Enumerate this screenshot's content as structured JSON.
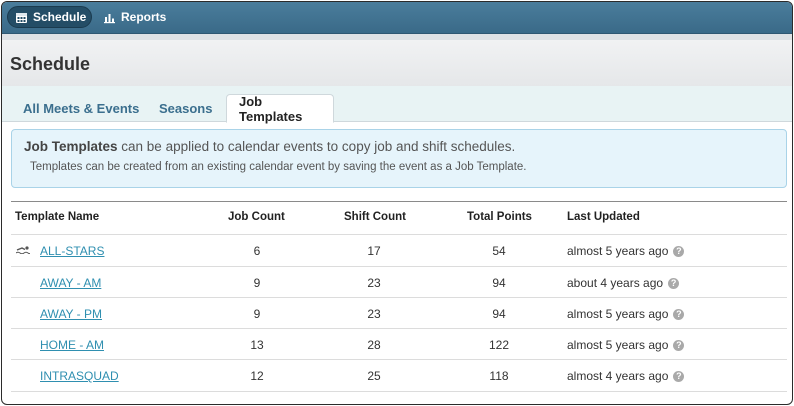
{
  "nav": {
    "schedule_label": "Schedule",
    "reports_label": "Reports",
    "icons": [
      "calendar-icon",
      "bar-chart-icon"
    ]
  },
  "page_title": "Schedule",
  "tabs": [
    {
      "label": "All Meets & Events"
    },
    {
      "label": "Seasons"
    },
    {
      "label": "Job Templates",
      "active": true
    }
  ],
  "info": {
    "strong": "Job Templates",
    "line1_rest": " can be applied to calendar events to copy job and shift schedules.",
    "line2": "Templates can be created from an existing calendar event by saving the event as a Job Template."
  },
  "table": {
    "headers": [
      "Template Name",
      "Job Count",
      "Shift Count",
      "Total Points",
      "Last Updated"
    ],
    "rows": [
      {
        "name": "ALL-STARS",
        "jobs": "6",
        "shifts": "17",
        "points": "54",
        "updated": "almost 5 years ago",
        "icon": "swimmer-icon"
      },
      {
        "name": "AWAY - AM",
        "jobs": "9",
        "shifts": "23",
        "points": "94",
        "updated": "about 4 years ago"
      },
      {
        "name": "AWAY - PM",
        "jobs": "9",
        "shifts": "23",
        "points": "94",
        "updated": "almost 5 years ago"
      },
      {
        "name": "HOME - AM",
        "jobs": "13",
        "shifts": "28",
        "points": "122",
        "updated": "almost 5 years ago"
      },
      {
        "name": "INTRASQUAD",
        "jobs": "12",
        "shifts": "25",
        "points": "118",
        "updated": "almost 4 years ago"
      }
    ]
  },
  "colors": {
    "nav_bar": "#3a6a88",
    "link": "#2f8fb0",
    "tab_text": "#3b6f8e",
    "info_bg": "#e6f4fb"
  }
}
